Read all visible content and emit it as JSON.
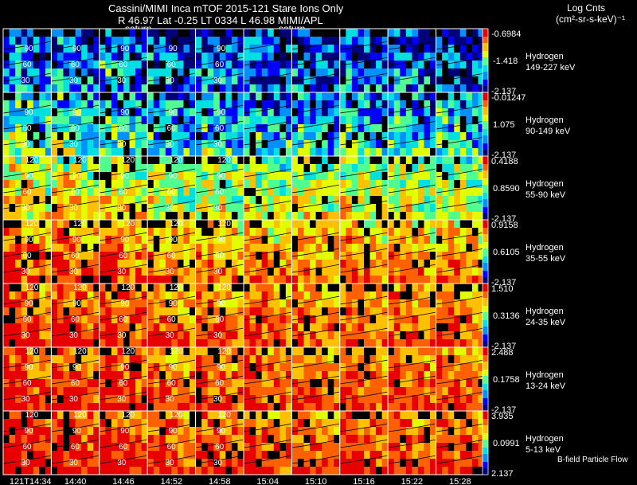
{
  "header": {
    "line1": "Cassini/MIMI Inca mTOF  2015-121    Stare    Ions Only",
    "line2": "R          46.97 Lat -0.25 LT 0334 L          46.98  MIMI/APL",
    "saturn_label": "saturn",
    "units_title": "Log Cnts",
    "units": "(cm²-sr-s-keV)⁻¹"
  },
  "footer": {
    "particle_flow_note": "B-field Particle Flow"
  },
  "chart_data": {
    "type": "heatmap",
    "title": "Cassini/MIMI Inca mTOF  2015-121    Stare    Ions Only",
    "x_tick_labels": [
      "121T14:34",
      "14:40",
      "14:46",
      "14:52",
      "14:58",
      "15:04",
      "15:10",
      "15:16",
      "15:22",
      "15:28"
    ],
    "contour_labels": [
      "30",
      "60",
      "90",
      "120"
    ],
    "colormap": [
      "#00007a",
      "#0000ff",
      "#0090ff",
      "#00e0e0",
      "#50ff90",
      "#e0ff00",
      "#ffc000",
      "#ff6000",
      "#e80000"
    ],
    "rows": [
      {
        "species": "Hydrogen",
        "energy": "149-227 keV",
        "cbar_max": "-0.6984",
        "cbar_mid": "-1.418",
        "cbar_min": "-2.137",
        "intensity": 0.18
      },
      {
        "species": "Hydrogen",
        "energy": "90-149 keV",
        "cbar_max": "-0.01247",
        "cbar_mid": "1.075",
        "cbar_min": "-2.137",
        "intensity": 0.32
      },
      {
        "species": "Hydrogen",
        "energy": "55-90 keV",
        "cbar_max": "0.4188",
        "cbar_mid": "0.8590",
        "cbar_min": "-2.137",
        "intensity": 0.55
      },
      {
        "species": "Hydrogen",
        "energy": "35-55 keV",
        "cbar_max": "0.9158",
        "cbar_mid": "0.6105",
        "cbar_min": "-2.137",
        "intensity": 0.72
      },
      {
        "species": "Hydrogen",
        "energy": "24-35 keV",
        "cbar_max": "1.510",
        "cbar_mid": "0.3136",
        "cbar_min": "-2.137",
        "intensity": 0.78
      },
      {
        "species": "Hydrogen",
        "energy": "13-24 keV",
        "cbar_max": "2.488",
        "cbar_mid": "0.1758",
        "cbar_min": "-2.137",
        "intensity": 0.8
      },
      {
        "species": "Hydrogen",
        "energy": "5-13 keV",
        "cbar_max": "3.935",
        "cbar_mid": "0.0991",
        "cbar_min": "2.137",
        "intensity": 0.82
      }
    ]
  }
}
